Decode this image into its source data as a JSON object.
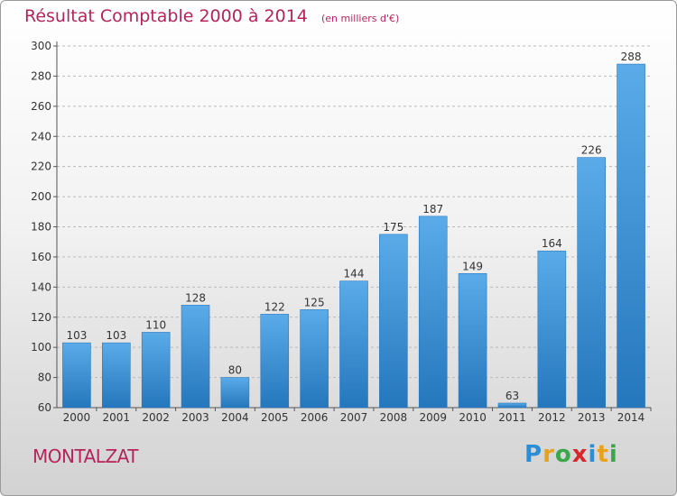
{
  "title": "Résultat Comptable 2000 à 2014",
  "subtitle": "(en milliers d'€)",
  "commune": "MONTALZAT",
  "logo": {
    "letters": [
      {
        "char": "P",
        "color": "#2a8fd6"
      },
      {
        "char": "r",
        "color": "#e8a21c"
      },
      {
        "char": "o",
        "color": "#3aa84a"
      },
      {
        "char": "x",
        "color": "#d9262b"
      },
      {
        "char": "i",
        "color": "#2a8fd6"
      },
      {
        "char": "t",
        "color": "#e8a21c"
      },
      {
        "char": "i",
        "color": "#3aa84a"
      }
    ]
  },
  "chart_data": {
    "type": "bar",
    "title": "Résultat Comptable 2000 à 2014",
    "subtitle": "(en milliers d'€)",
    "categories": [
      "2000",
      "2001",
      "2002",
      "2003",
      "2004",
      "2005",
      "2006",
      "2007",
      "2008",
      "2009",
      "2010",
      "2011",
      "2012",
      "2013",
      "2014"
    ],
    "values": [
      103,
      103,
      110,
      128,
      80,
      122,
      125,
      144,
      175,
      187,
      149,
      63,
      164,
      226,
      288
    ],
    "ylim": [
      60,
      300
    ],
    "yticks": [
      60,
      80,
      100,
      120,
      140,
      160,
      180,
      200,
      220,
      240,
      260,
      280,
      300
    ],
    "grid": true,
    "data_labels": true,
    "bar_color": "#3f93d8"
  }
}
